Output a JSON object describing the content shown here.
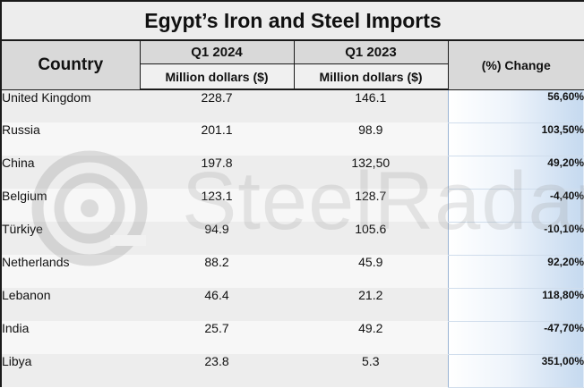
{
  "title": "Egypt’s Iron and Steel Imports",
  "headers": {
    "country": "Country",
    "q1_2024": "Q1 2024",
    "q1_2023": "Q1 2023",
    "unit_2024": "Million dollars ($)",
    "unit_2023": "Million dollars ($)",
    "change": "(%) Change"
  },
  "rows": [
    {
      "country": "United Kingdom",
      "q1_2024": "228.7",
      "q1_2023": "146.1",
      "change": "56,60%"
    },
    {
      "country": "Russia",
      "q1_2024": "201.1",
      "q1_2023": "98.9",
      "change": "103,50%"
    },
    {
      "country": "China",
      "q1_2024": "197.8",
      "q1_2023": "132,50",
      "change": "49,20%"
    },
    {
      "country": "Belgium",
      "q1_2024": "123.1",
      "q1_2023": "128.7",
      "change": "-4,40%"
    },
    {
      "country": "Türkiye",
      "q1_2024": "94.9",
      "q1_2023": "105.6",
      "change": "-10,10%"
    },
    {
      "country": "Netherlands",
      "q1_2024": "88.2",
      "q1_2023": "45.9",
      "change": "92,20%"
    },
    {
      "country": "Lebanon",
      "q1_2024": "46.4",
      "q1_2023": "21.2",
      "change": "118,80%"
    },
    {
      "country": "India",
      "q1_2024": "25.7",
      "q1_2023": "49.2",
      "change": "-47,70%"
    },
    {
      "country": "Libya",
      "q1_2024": "23.8",
      "q1_2023": "5.3",
      "change": "351,00%"
    }
  ],
  "watermark": {
    "text": "SteelRadar",
    "icon": "steelradar-logo-icon"
  }
}
